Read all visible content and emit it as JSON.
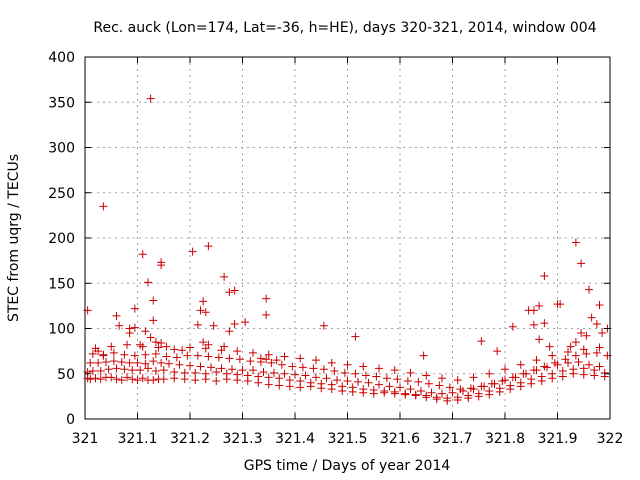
{
  "chart_data": {
    "type": "scatter",
    "title": "Rec. auck (Lon=174, Lat=-36, h=HE), days 320-321, 2014, window 004",
    "xlabel": "GPS time / Days of year 2014",
    "ylabel": "STEC from uqrg / TECUs",
    "xlim": [
      321,
      322
    ],
    "ylim": [
      0,
      400
    ],
    "xticks": [
      "321",
      "321.1",
      "321.2",
      "321.3",
      "321.4",
      "321.5",
      "321.6",
      "321.7",
      "321.8",
      "321.9",
      "322"
    ],
    "yticks": [
      "0",
      "50",
      "100",
      "150",
      "200",
      "250",
      "300",
      "350",
      "400"
    ],
    "grid": true,
    "marker": "+",
    "color": "#cc0000",
    "series": [
      {
        "name": "STEC",
        "x": [
          321.005,
          321.01,
          321.02,
          321.03,
          321.04,
          321.05,
          321.06,
          321.07,
          321.08,
          321.09,
          321.1,
          321.11,
          321.12,
          321.13,
          321.14,
          321.15,
          321.17,
          321.19,
          321.21,
          321.23,
          321.25,
          321.27,
          321.29,
          321.31,
          321.33,
          321.35,
          321.37,
          321.39,
          321.41,
          321.43,
          321.45,
          321.47,
          321.49,
          321.51,
          321.53,
          321.55,
          321.57,
          321.59,
          321.61,
          321.63,
          321.65,
          321.67,
          321.69,
          321.71,
          321.73,
          321.75,
          321.77,
          321.79,
          321.81,
          321.83,
          321.85,
          321.87,
          321.89,
          321.91,
          321.93,
          321.95,
          321.97,
          321.99,
          321.005,
          321.015,
          321.03,
          321.045,
          321.06,
          321.075,
          321.09,
          321.105,
          321.12,
          321.135,
          321.15,
          321.17,
          321.19,
          321.21,
          321.23,
          321.25,
          321.27,
          321.29,
          321.31,
          321.33,
          321.35,
          321.37,
          321.39,
          321.41,
          321.43,
          321.45,
          321.47,
          321.49,
          321.51,
          321.53,
          321.55,
          321.57,
          321.59,
          321.61,
          321.63,
          321.65,
          321.67,
          321.69,
          321.71,
          321.73,
          321.75,
          321.77,
          321.79,
          321.81,
          321.83,
          321.85,
          321.87,
          321.89,
          321.91,
          321.93,
          321.95,
          321.97,
          321.99,
          321.01,
          321.025,
          321.04,
          321.055,
          321.07,
          321.085,
          321.1,
          321.115,
          321.13,
          321.145,
          321.16,
          321.18,
          321.2,
          321.22,
          321.24,
          321.26,
          321.28,
          321.3,
          321.32,
          321.34,
          321.36,
          321.38,
          321.4,
          321.42,
          321.44,
          321.46,
          321.48,
          321.5,
          321.52,
          321.54,
          321.56,
          321.58,
          321.6,
          321.62,
          321.64,
          321.66,
          321.68,
          321.7,
          321.72,
          321.74,
          321.76,
          321.78,
          321.8,
          321.82,
          321.84,
          321.86,
          321.88,
          321.9,
          321.92,
          321.94,
          321.96,
          321.98,
          321.015,
          321.035,
          321.055,
          321.075,
          321.095,
          321.115,
          321.135,
          321.155,
          321.175,
          321.195,
          321.215,
          321.235,
          321.255,
          321.275,
          321.295,
          321.315,
          321.335,
          321.355,
          321.375,
          321.395,
          321.415,
          321.435,
          321.455,
          321.475,
          321.495,
          321.515,
          321.535,
          321.555,
          321.575,
          321.595,
          321.615,
          321.635,
          321.655,
          321.675,
          321.695,
          321.715,
          321.735,
          321.755,
          321.775,
          321.795,
          321.815,
          321.835,
          321.855,
          321.875,
          321.895,
          321.915,
          321.935,
          321.955,
          321.975,
          321.995,
          321.02,
          321.05,
          321.08,
          321.11,
          321.14,
          321.17,
          321.2,
          321.23,
          321.26,
          321.29,
          321.32,
          321.35,
          321.38,
          321.41,
          321.44,
          321.47,
          321.5,
          321.53,
          321.56,
          321.59,
          321.62,
          321.65,
          321.68,
          321.71,
          321.74,
          321.77,
          321.8,
          321.83,
          321.86,
          321.89,
          321.92,
          321.95,
          321.98,
          321.005,
          321.025,
          321.035,
          321.065,
          321.085,
          321.095,
          321.105,
          321.115,
          321.125,
          321.135,
          321.145,
          321.155,
          321.185,
          321.215,
          321.225,
          321.235,
          321.245,
          321.265,
          321.275,
          321.285,
          321.305,
          321.335,
          321.345,
          321.365,
          321.455,
          321.515,
          321.645,
          321.755,
          321.785,
          321.815,
          321.845,
          321.855,
          321.865,
          321.875,
          321.885,
          321.905,
          321.925,
          321.935,
          321.945,
          321.955,
          321.965,
          321.975,
          321.985,
          321.995,
          321.125,
          321.035,
          321.205,
          321.235,
          321.11,
          321.145,
          321.145,
          321.275,
          321.285,
          321.265,
          321.225,
          321.345,
          321.875,
          321.935,
          321.945,
          321.9,
          321.96,
          321.865,
          321.855,
          321.98,
          321.12,
          321.13,
          321.13,
          321.22,
          321.23,
          321.345,
          321.06,
          321.085,
          321.095
        ],
        "y": [
          45,
          44,
          45,
          44,
          46,
          46,
          44,
          43,
          46,
          44,
          43,
          45,
          43,
          43,
          44,
          44,
          45,
          44,
          43,
          44,
          42,
          44,
          43,
          42,
          40,
          38,
          37,
          36,
          35,
          36,
          34,
          33,
          31,
          30,
          29,
          28,
          29,
          28,
          27,
          26,
          24,
          22,
          20,
          21,
          23,
          25,
          27,
          30,
          33,
          36,
          39,
          42,
          45,
          47,
          50,
          49,
          48,
          47,
          52,
          53,
          53,
          55,
          56,
          55,
          54,
          54,
          56,
          53,
          54,
          52,
          51,
          51,
          50,
          52,
          50,
          49,
          48,
          47,
          46,
          45,
          43,
          42,
          40,
          39,
          38,
          36,
          35,
          33,
          32,
          31,
          30,
          28,
          27,
          26,
          24,
          23,
          24,
          26,
          28,
          31,
          34,
          37,
          40,
          44,
          47,
          50,
          53,
          55,
          56,
          54,
          51,
          62,
          62,
          63,
          64,
          63,
          62,
          62,
          61,
          64,
          62,
          61,
          60,
          59,
          58,
          57,
          56,
          55,
          54,
          54,
          52,
          51,
          50,
          49,
          48,
          46,
          45,
          43,
          42,
          41,
          40,
          38,
          36,
          35,
          33,
          31,
          29,
          28,
          29,
          31,
          33,
          36,
          39,
          43,
          46,
          50,
          54,
          57,
          60,
          62,
          63,
          60,
          58,
          72,
          71,
          73,
          71,
          70,
          71,
          72,
          69,
          68,
          70,
          70,
          69,
          68,
          67,
          66,
          64,
          63,
          62,
          60,
          58,
          57,
          56,
          55,
          53,
          51,
          50,
          48,
          47,
          45,
          44,
          42,
          41,
          39,
          37,
          35,
          33,
          34,
          36,
          39,
          42,
          46,
          50,
          54,
          58,
          62,
          66,
          70,
          72,
          73,
          70,
          78,
          80,
          82,
          80,
          79,
          77,
          79,
          78,
          76,
          75,
          73,
          71,
          69,
          67,
          65,
          62,
          60,
          58,
          56,
          54,
          51,
          48,
          45,
          43,
          46,
          50,
          55,
          60,
          65,
          70,
          74,
          77,
          79,
          120,
          75,
          70,
          103,
          95,
          122,
          82,
          97,
          90,
          85,
          84,
          80,
          76,
          104,
          85,
          82,
          103,
          80,
          97,
          105,
          107,
          67,
          66,
          65,
          103,
          91,
          70,
          86,
          75,
          102,
          120,
          104,
          88,
          106,
          80,
          127,
          80,
          85,
          95,
          92,
          112,
          105,
          95,
          100,
          354,
          235,
          185,
          191,
          182,
          173,
          170,
          140,
          142,
          157,
          130,
          133,
          158,
          195,
          172,
          127,
          143,
          125,
          120,
          126,
          151,
          131,
          109,
          120,
          118,
          115,
          114,
          100,
          101
        ]
      }
    ]
  }
}
